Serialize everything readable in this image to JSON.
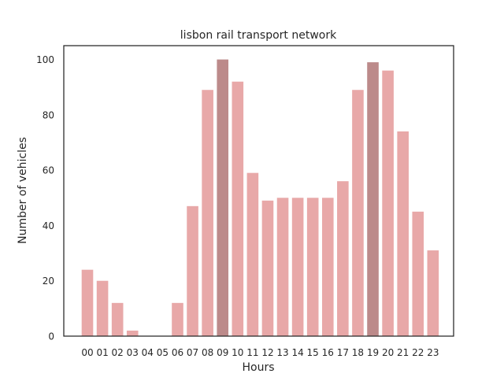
{
  "chart_data": {
    "type": "bar",
    "title": "lisbon rail transport network",
    "xlabel": "Hours",
    "ylabel": "Number of vehicles",
    "categories": [
      "00",
      "01",
      "02",
      "03",
      "04",
      "05",
      "06",
      "07",
      "08",
      "09",
      "10",
      "11",
      "12",
      "13",
      "14",
      "15",
      "16",
      "17",
      "18",
      "19",
      "20",
      "21",
      "22",
      "23"
    ],
    "values": [
      24,
      20,
      12,
      2,
      0,
      0,
      12,
      47,
      89,
      100,
      92,
      59,
      49,
      50,
      50,
      50,
      50,
      56,
      89,
      99,
      96,
      74,
      45,
      31
    ],
    "highlighted_categories": [
      "09",
      "19"
    ],
    "ylim": [
      0,
      105
    ],
    "yticks": [
      0,
      20,
      40,
      60,
      80,
      100
    ],
    "grid": false,
    "colors": {
      "bar": "#e8a8a8",
      "bar_highlight": "#bc8a8a",
      "axis": "#262626"
    }
  }
}
